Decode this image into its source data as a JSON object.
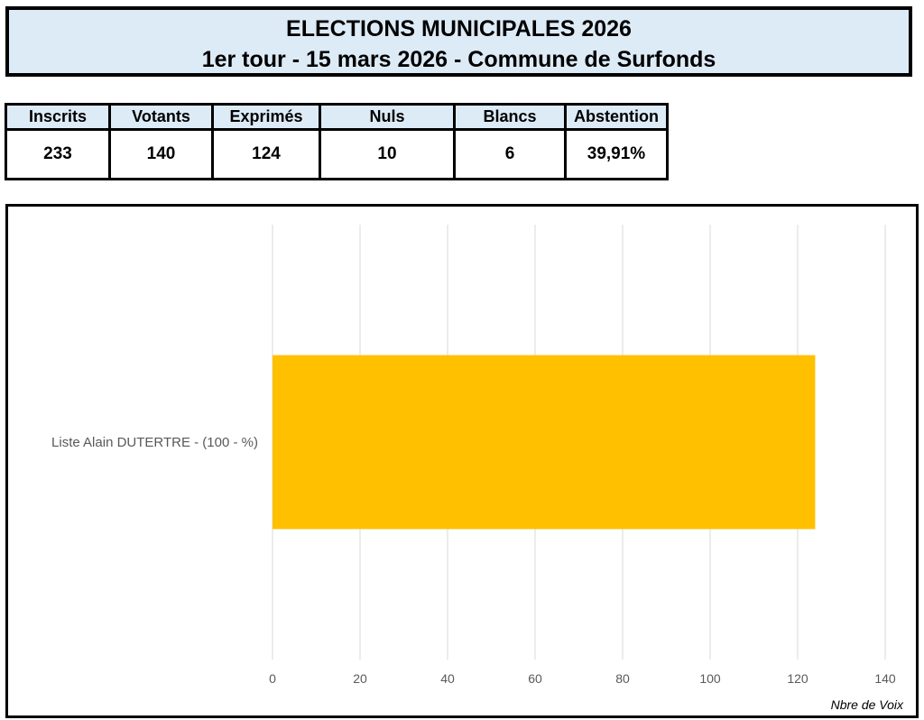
{
  "header": {
    "title": "ELECTIONS MUNICIPALES 2026",
    "subtitle": "1er tour - 15 mars 2026 - Commune de Surfonds"
  },
  "stats": {
    "headers": [
      "Inscrits",
      "Votants",
      "Exprimés",
      "Nuls",
      "Blancs",
      "Abstention"
    ],
    "values": [
      "233",
      "140",
      "124",
      "10",
      "6",
      "39,91%"
    ]
  },
  "chart_data": {
    "type": "bar",
    "orientation": "horizontal",
    "categories": [
      "Liste Alain DUTERTRE - (100 - %)"
    ],
    "values": [
      124
    ],
    "xlabel": "Nbre de Voix",
    "xlim": [
      0,
      140
    ],
    "ticks": [
      0,
      20,
      40,
      60,
      80,
      100,
      120,
      140
    ],
    "grid": true,
    "bar_color": "#ffc000"
  }
}
